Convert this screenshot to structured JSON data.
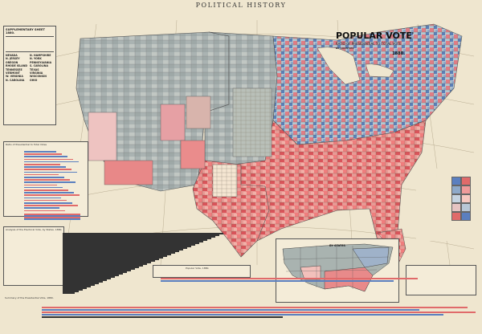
{
  "header": {
    "title": "POLITICAL HISTORY"
  },
  "map_title": {
    "title": "POPULAR VOTE",
    "subtitle": "RATIO OF PRESIDENTIAL TO TOTAL VOTE",
    "by_line": "BY COUNTIES",
    "year": "1880."
  },
  "supplementary": {
    "title": "SUPPLEMENTARY SHEET 1880.",
    "states": [
      "NEVADA",
      "N. HAMPSHIRE",
      "N. JERSEY",
      "N. YORK",
      "OREGON",
      "PENNSYLVANIA",
      "RHODE ISLAND",
      "S. CAROLINA",
      "TENNESSEE",
      "TEXAS",
      "VERMONT",
      "VIRGINIA",
      "W. VIRGINIA",
      "WISCONSIN",
      "N. CAROLINA",
      "OHIO"
    ]
  },
  "charts_left": {
    "ratio_title": "Ratio of Presidential to Total Votes",
    "analysis_title": "Analysis of the Electoral Vote, by States. 1880."
  },
  "bottom_chart": {
    "title": "Summary of the Presidential Vote, 1880.",
    "popular_label": "Popular Vote, 1880."
  },
  "inset": {
    "title": "BY STATES"
  },
  "colors": {
    "red": "#e06a6a",
    "blue": "#5b7fbf",
    "green": "#8fae9a",
    "paper": "#efe6cf"
  }
}
